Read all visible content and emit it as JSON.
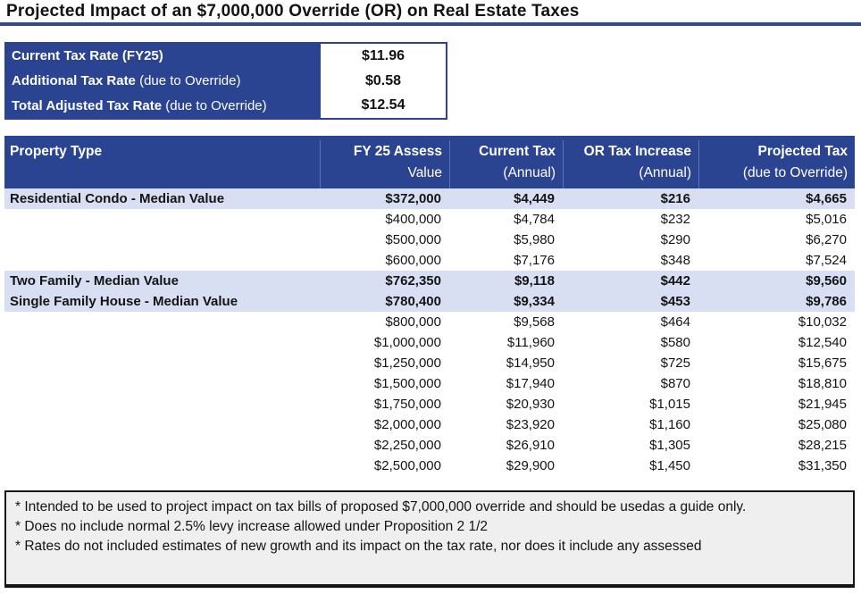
{
  "title": "Projected Impact of an $7,000,000 Override (OR) on Real Estate Taxes",
  "colors": {
    "header_blue": "#2b4492",
    "title_rule_blue": "#2d4b9a",
    "highlight_row": "#d9dff3",
    "footnote_bg": "#efefef"
  },
  "rate_table": {
    "rows": [
      {
        "label_bold": "Current Tax Rate (FY25)",
        "label_rest": "",
        "value": "$11.96"
      },
      {
        "label_bold": "Additional Tax Rate",
        "label_rest": " (due to Override)",
        "value": "$0.58"
      },
      {
        "label_bold": "Total Adjusted Tax Rate",
        "label_rest": " (due to Override)",
        "value": "$12.54"
      }
    ]
  },
  "main_table": {
    "columns": [
      {
        "line1": "Property Type",
        "line2": ""
      },
      {
        "line1": "FY 25 Assess",
        "line2": "Value"
      },
      {
        "line1": "Current Tax",
        "line2": "(Annual)"
      },
      {
        "line1": "OR Tax Increase",
        "line2": "(Annual)"
      },
      {
        "line1": "Projected Tax",
        "line2": "(due to Override)"
      }
    ],
    "rows": [
      {
        "property": "Residential Condo - Median Value",
        "assess": "$372,000",
        "current": "$4,449",
        "increase": "$216",
        "projected": "$4,665",
        "highlight": true
      },
      {
        "property": "",
        "assess": "$400,000",
        "current": "$4,784",
        "increase": "$232",
        "projected": "$5,016",
        "highlight": false
      },
      {
        "property": "",
        "assess": "$500,000",
        "current": "$5,980",
        "increase": "$290",
        "projected": "$6,270",
        "highlight": false
      },
      {
        "property": "",
        "assess": "$600,000",
        "current": "$7,176",
        "increase": "$348",
        "projected": "$7,524",
        "highlight": false
      },
      {
        "property": "Two Family - Median Value",
        "assess": "$762,350",
        "current": "$9,118",
        "increase": "$442",
        "projected": "$9,560",
        "highlight": true
      },
      {
        "property": "Single Family House - Median Value",
        "assess": "$780,400",
        "current": "$9,334",
        "increase": "$453",
        "projected": "$9,786",
        "highlight": true
      },
      {
        "property": "",
        "assess": "$800,000",
        "current": "$9,568",
        "increase": "$464",
        "projected": "$10,032",
        "highlight": false
      },
      {
        "property": "",
        "assess": "$1,000,000",
        "current": "$11,960",
        "increase": "$580",
        "projected": "$12,540",
        "highlight": false
      },
      {
        "property": "",
        "assess": "$1,250,000",
        "current": "$14,950",
        "increase": "$725",
        "projected": "$15,675",
        "highlight": false
      },
      {
        "property": "",
        "assess": "$1,500,000",
        "current": "$17,940",
        "increase": "$870",
        "projected": "$18,810",
        "highlight": false
      },
      {
        "property": "",
        "assess": "$1,750,000",
        "current": "$20,930",
        "increase": "$1,015",
        "projected": "$21,945",
        "highlight": false
      },
      {
        "property": "",
        "assess": "$2,000,000",
        "current": "$23,920",
        "increase": "$1,160",
        "projected": "$25,080",
        "highlight": false
      },
      {
        "property": "",
        "assess": "$2,250,000",
        "current": "$26,910",
        "increase": "$1,305",
        "projected": "$28,215",
        "highlight": false
      },
      {
        "property": "",
        "assess": "$2,500,000",
        "current": "$29,900",
        "increase": "$1,450",
        "projected": "$31,350",
        "highlight": false
      }
    ]
  },
  "footnotes": {
    "lines": [
      "* Intended to be used to project impact on tax bills of proposed $7,000,000 override and should be usedas a guide only.",
      "* Does no include normal 2.5% levy increase allowed under Proposition 2 1/2",
      "* Rates do not included estimates of new growth and its impact on the tax rate, nor does it include any assessed"
    ]
  }
}
